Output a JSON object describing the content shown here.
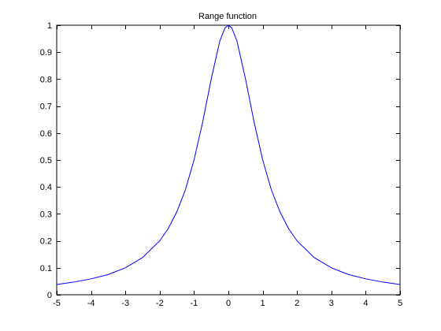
{
  "chart_data": {
    "type": "line",
    "title": "Range function",
    "xlabel": "",
    "ylabel": "",
    "xlim": [
      -5,
      5
    ],
    "ylim": [
      0,
      1
    ],
    "x_ticks": [
      -5,
      -4,
      -3,
      -2,
      -1,
      0,
      1,
      2,
      3,
      4,
      5
    ],
    "x_tick_labels": [
      "-5",
      "-4",
      "-3",
      "-2",
      "-1",
      "0",
      "1",
      "2",
      "3",
      "4",
      "5"
    ],
    "y_ticks": [
      0,
      0.1,
      0.2,
      0.3,
      0.4,
      0.5,
      0.6,
      0.7,
      0.8,
      0.9,
      1
    ],
    "y_tick_labels": [
      "0",
      "0.1",
      "0.2",
      "0.3",
      "0.4",
      "0.5",
      "0.6",
      "0.7",
      "0.8",
      "0.9",
      "1"
    ],
    "grid": false,
    "legend": "none",
    "series": [
      {
        "color": "#0000ff",
        "x": [
          -5,
          -4.5,
          -4,
          -3.5,
          -3,
          -2.5,
          -2,
          -1.75,
          -1.5,
          -1.25,
          -1,
          -0.75,
          -0.5,
          -0.25,
          -0.1,
          0,
          0.1,
          0.25,
          0.5,
          0.75,
          1,
          1.25,
          1.5,
          1.75,
          2,
          2.5,
          3,
          3.5,
          4,
          4.5,
          5
        ],
        "y": [
          0.038,
          0.047,
          0.059,
          0.075,
          0.1,
          0.138,
          0.2,
          0.246,
          0.308,
          0.39,
          0.5,
          0.64,
          0.8,
          0.941,
          0.99,
          1,
          0.99,
          0.941,
          0.8,
          0.64,
          0.5,
          0.39,
          0.308,
          0.246,
          0.2,
          0.138,
          0.1,
          0.075,
          0.059,
          0.047,
          0.038
        ]
      }
    ]
  }
}
